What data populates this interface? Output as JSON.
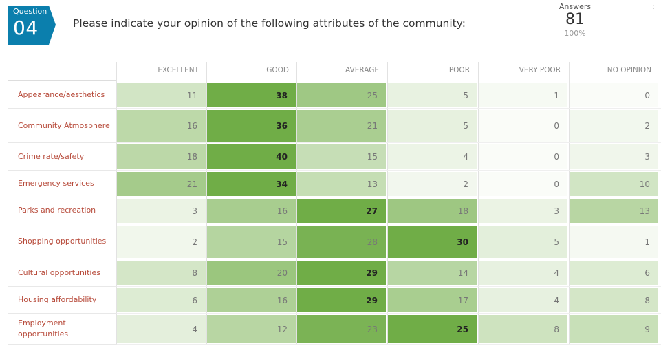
{
  "question": {
    "label": "Question",
    "number": "04",
    "title": "Please indicate your opinion of the following attributes of the community:"
  },
  "answers": {
    "label": "Answers",
    "count": "81",
    "percent": "100%"
  },
  "columns": [
    "EXCELLENT",
    "GOOD",
    "AVERAGE",
    "POOR",
    "VERY POOR",
    "NO OPINION"
  ],
  "rows": [
    {
      "label": "Appearance/aesthetics",
      "values": [
        11,
        38,
        25,
        5,
        1,
        0
      ]
    },
    {
      "label": "Community Atmosphere",
      "values": [
        16,
        36,
        21,
        5,
        0,
        2
      ]
    },
    {
      "label": "Crime rate/safety",
      "values": [
        18,
        40,
        15,
        4,
        0,
        3
      ]
    },
    {
      "label": "Emergency services",
      "values": [
        21,
        34,
        13,
        2,
        0,
        10
      ]
    },
    {
      "label": "Parks and recreation",
      "values": [
        3,
        16,
        27,
        18,
        3,
        13
      ]
    },
    {
      "label": "Shopping opportunities",
      "values": [
        2,
        15,
        28,
        30,
        5,
        1
      ]
    },
    {
      "label": "Cultural opportunities",
      "values": [
        8,
        20,
        29,
        14,
        4,
        6
      ]
    },
    {
      "label": "Housing affordability",
      "values": [
        6,
        16,
        29,
        17,
        4,
        8
      ]
    },
    {
      "label": "Employment opportunities",
      "values": [
        4,
        12,
        23,
        25,
        8,
        9
      ]
    }
  ],
  "colors": {
    "badge": "#0b7fad",
    "row_label": "#b74a3a",
    "heat_max": "#70ad47"
  }
}
